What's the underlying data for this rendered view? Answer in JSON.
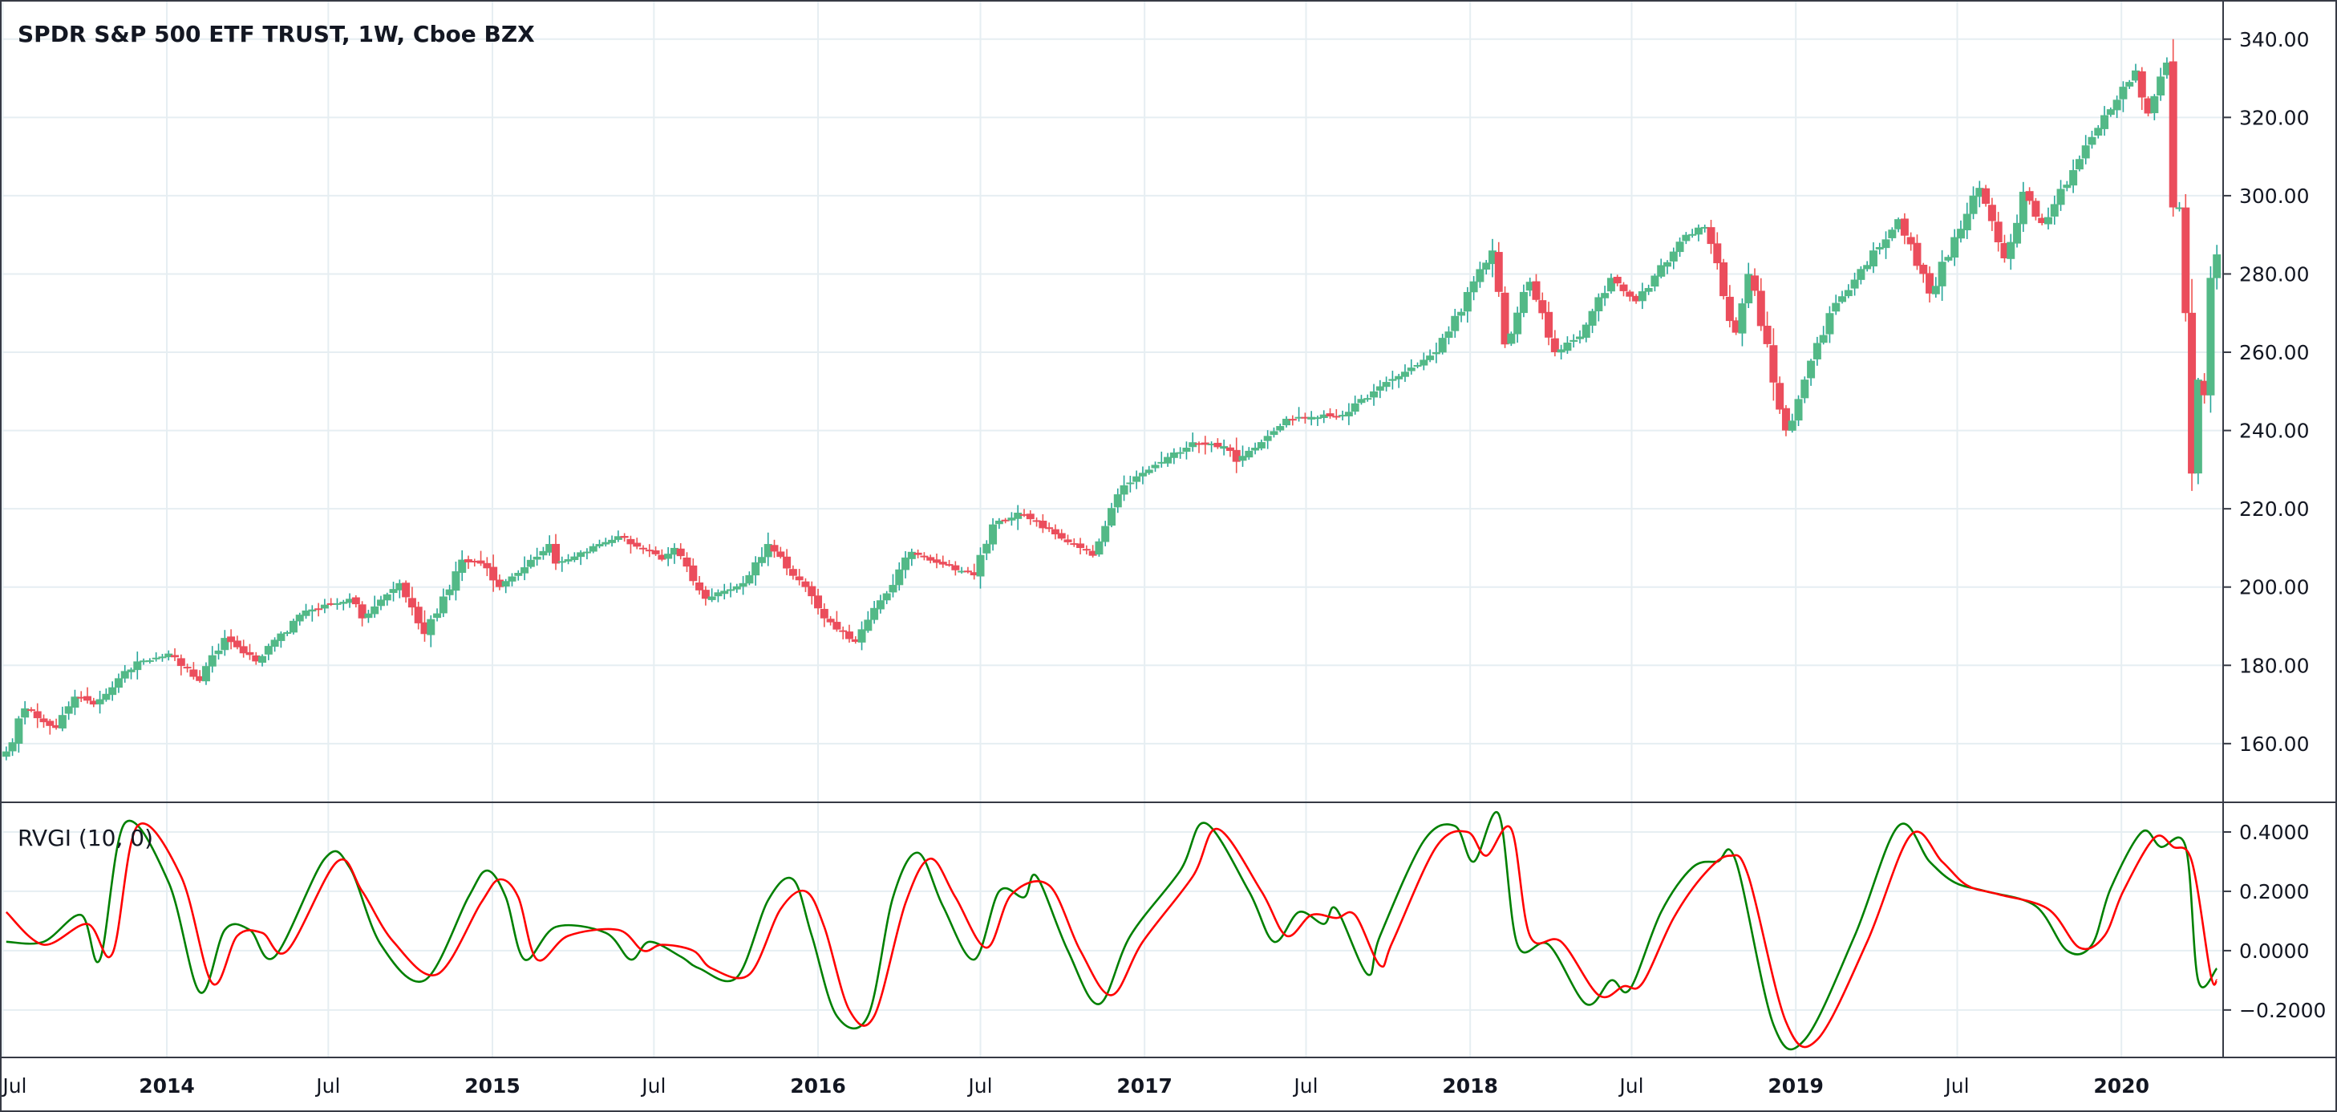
{
  "chart_data": [
    {
      "type": "candlestick",
      "title": "SPDR S&P 500 ETF TRUST, 1W, Cboe BZX",
      "ylim": [
        145,
        350
      ],
      "yticks": [
        160,
        180,
        200,
        220,
        240,
        260,
        280,
        300,
        320,
        340
      ],
      "ytick_labels": [
        "160.00",
        "180.00",
        "200.00",
        "220.00",
        "240.00",
        "260.00",
        "280.00",
        "300.00",
        "320.00",
        "340.00"
      ],
      "grid": true,
      "colors": {
        "up": "#26a69a",
        "up_fill": "#53b987",
        "down": "#ef5350",
        "down_fill": "#eb4d5c",
        "grid": "#e6eef2"
      },
      "close_anchors": [
        [
          "2013-07-05",
          158
        ],
        [
          "2013-07-26",
          169
        ],
        [
          "2013-08-30",
          164
        ],
        [
          "2013-09-20",
          172
        ],
        [
          "2013-10-11",
          170
        ],
        [
          "2013-11-29",
          181
        ],
        [
          "2014-01-03",
          183
        ],
        [
          "2014-02-07",
          176
        ],
        [
          "2014-03-07",
          187
        ],
        [
          "2014-04-11",
          181
        ],
        [
          "2014-06-06",
          194
        ],
        [
          "2014-07-25",
          197
        ],
        [
          "2014-08-08",
          192
        ],
        [
          "2014-09-19",
          201
        ],
        [
          "2014-10-17",
          188
        ],
        [
          "2014-11-28",
          207
        ],
        [
          "2014-12-19",
          206
        ],
        [
          "2015-01-09",
          200
        ],
        [
          "2015-03-06",
          211
        ],
        [
          "2015-03-13",
          206
        ],
        [
          "2015-05-22",
          213
        ],
        [
          "2015-07-10",
          207
        ],
        [
          "2015-07-24",
          210
        ],
        [
          "2015-08-28",
          197
        ],
        [
          "2015-10-09",
          201
        ],
        [
          "2015-11-06",
          211
        ],
        [
          "2015-12-18",
          200
        ],
        [
          "2016-01-08",
          192
        ],
        [
          "2016-02-12",
          186
        ],
        [
          "2016-04-15",
          209
        ],
        [
          "2016-06-24",
          203
        ],
        [
          "2016-07-15",
          216
        ],
        [
          "2016-08-12",
          219
        ],
        [
          "2016-11-04",
          208
        ],
        [
          "2016-12-09",
          226
        ],
        [
          "2017-02-24",
          237
        ],
        [
          "2017-03-31",
          236
        ],
        [
          "2017-04-14",
          232
        ],
        [
          "2017-06-09",
          243
        ],
        [
          "2017-08-11",
          244
        ],
        [
          "2017-09-15",
          250
        ],
        [
          "2017-11-24",
          260
        ],
        [
          "2018-01-26",
          286
        ],
        [
          "2018-02-09",
          262
        ],
        [
          "2018-03-09",
          278
        ],
        [
          "2018-04-06",
          260
        ],
        [
          "2018-05-04",
          264
        ],
        [
          "2018-06-08",
          279
        ],
        [
          "2018-07-06",
          273
        ],
        [
          "2018-08-31",
          290
        ],
        [
          "2018-09-21",
          292
        ],
        [
          "2018-10-26",
          265
        ],
        [
          "2018-11-09",
          280
        ],
        [
          "2018-12-21",
          240
        ],
        [
          "2019-02-08",
          270
        ],
        [
          "2019-04-26",
          294
        ],
        [
          "2019-05-31",
          275
        ],
        [
          "2019-07-26",
          302
        ],
        [
          "2019-08-23",
          284
        ],
        [
          "2019-09-13",
          301
        ],
        [
          "2019-10-04",
          293
        ],
        [
          "2019-11-29",
          315
        ],
        [
          "2020-01-17",
          332
        ],
        [
          "2020-01-31",
          321
        ],
        [
          "2020-02-21",
          334
        ],
        [
          "2020-02-28",
          297
        ],
        [
          "2020-03-06",
          297
        ],
        [
          "2020-03-13",
          270
        ],
        [
          "2020-03-20",
          229
        ],
        [
          "2020-03-27",
          253
        ],
        [
          "2020-04-03",
          249
        ],
        [
          "2020-04-10",
          279
        ],
        [
          "2020-04-17",
          285
        ]
      ]
    },
    {
      "type": "line",
      "title": "RVGI (10, 0)",
      "ylim": [
        -0.36,
        0.5
      ],
      "yticks": [
        -0.2,
        0,
        0.2,
        0.4
      ],
      "ytick_labels": [
        "−0.2000",
        "0.0000",
        "0.2000",
        "0.4000"
      ],
      "grid": true,
      "series": [
        {
          "role": "rvgi",
          "color": "#008000",
          "points": [
            [
              "2013-07-05",
              0.03
            ],
            [
              "2013-08-16",
              0.03
            ],
            [
              "2013-09-27",
              0.12
            ],
            [
              "2013-10-18",
              -0.03
            ],
            [
              "2013-11-15",
              0.43
            ],
            [
              "2014-01-03",
              0.23
            ],
            [
              "2014-02-07",
              -0.14
            ],
            [
              "2014-03-07",
              0.07
            ],
            [
              "2014-04-04",
              0.07
            ],
            [
              "2014-05-02",
              -0.02
            ],
            [
              "2014-06-27",
              0.31
            ],
            [
              "2014-07-25",
              0.28
            ],
            [
              "2014-08-29",
              0.02
            ],
            [
              "2014-10-17",
              -0.1
            ],
            [
              "2014-12-05",
              0.18
            ],
            [
              "2014-12-26",
              0.27
            ],
            [
              "2015-01-16",
              0.18
            ],
            [
              "2015-02-06",
              -0.03
            ],
            [
              "2015-03-13",
              0.08
            ],
            [
              "2015-05-08",
              0.06
            ],
            [
              "2015-06-05",
              -0.03
            ],
            [
              "2015-06-26",
              0.03
            ],
            [
              "2015-07-31",
              -0.02
            ],
            [
              "2015-08-21",
              -0.06
            ],
            [
              "2015-10-02",
              -0.09
            ],
            [
              "2015-11-06",
              0.17
            ],
            [
              "2015-12-04",
              0.24
            ],
            [
              "2015-12-25",
              0.05
            ],
            [
              "2016-01-22",
              -0.22
            ],
            [
              "2016-02-26",
              -0.22
            ],
            [
              "2016-03-25",
              0.18
            ],
            [
              "2016-04-22",
              0.33
            ],
            [
              "2016-05-20",
              0.15
            ],
            [
              "2016-06-24",
              -0.03
            ],
            [
              "2016-07-22",
              0.2
            ],
            [
              "2016-08-19",
              0.18
            ],
            [
              "2016-09-02",
              0.25
            ],
            [
              "2016-10-07",
              0.0
            ],
            [
              "2016-11-11",
              -0.18
            ],
            [
              "2016-12-16",
              0.05
            ],
            [
              "2017-02-10",
              0.27
            ],
            [
              "2017-03-10",
              0.43
            ],
            [
              "2017-04-28",
              0.2
            ],
            [
              "2017-05-26",
              0.03
            ],
            [
              "2017-06-23",
              0.13
            ],
            [
              "2017-07-21",
              0.09
            ],
            [
              "2017-08-04",
              0.14
            ],
            [
              "2017-09-08",
              -0.08
            ],
            [
              "2017-09-22",
              0.05
            ],
            [
              "2017-11-10",
              0.37
            ],
            [
              "2017-12-15",
              0.42
            ],
            [
              "2018-01-05",
              0.3
            ],
            [
              "2018-02-02",
              0.46
            ],
            [
              "2018-02-23",
              0.02
            ],
            [
              "2018-03-30",
              0.02
            ],
            [
              "2018-05-11",
              -0.18
            ],
            [
              "2018-06-08",
              -0.1
            ],
            [
              "2018-06-29",
              -0.13
            ],
            [
              "2018-08-03",
              0.13
            ],
            [
              "2018-09-07",
              0.28
            ],
            [
              "2018-10-05",
              0.3
            ],
            [
              "2018-10-26",
              0.3
            ],
            [
              "2018-12-07",
              -0.25
            ],
            [
              "2019-01-11",
              -0.3
            ],
            [
              "2019-03-08",
              0.05
            ],
            [
              "2019-04-26",
              0.42
            ],
            [
              "2019-05-31",
              0.3
            ],
            [
              "2019-06-28",
              0.23
            ],
            [
              "2019-08-02",
              0.2
            ],
            [
              "2019-09-27",
              0.15
            ],
            [
              "2019-11-01",
              0.0
            ],
            [
              "2019-11-29",
              0.02
            ],
            [
              "2019-12-20",
              0.21
            ],
            [
              "2020-01-24",
              0.4
            ],
            [
              "2020-02-14",
              0.35
            ],
            [
              "2020-03-13",
              0.35
            ],
            [
              "2020-03-27",
              -0.1
            ],
            [
              "2020-04-17",
              -0.06
            ]
          ]
        },
        {
          "role": "signal",
          "color": "#ff0000",
          "points": [
            [
              "2013-07-05",
              0.13
            ],
            [
              "2013-08-16",
              0.02
            ],
            [
              "2013-10-04",
              0.09
            ],
            [
              "2013-11-01",
              -0.01
            ],
            [
              "2013-11-29",
              0.42
            ],
            [
              "2014-01-17",
              0.25
            ],
            [
              "2014-02-21",
              -0.11
            ],
            [
              "2014-03-21",
              0.05
            ],
            [
              "2014-04-18",
              0.06
            ],
            [
              "2014-05-16",
              0.0
            ],
            [
              "2014-07-11",
              0.3
            ],
            [
              "2014-08-08",
              0.2
            ],
            [
              "2014-09-12",
              0.03
            ],
            [
              "2014-10-31",
              -0.08
            ],
            [
              "2014-12-19",
              0.16
            ],
            [
              "2015-01-09",
              0.24
            ],
            [
              "2015-01-30",
              0.18
            ],
            [
              "2015-02-20",
              -0.03
            ],
            [
              "2015-03-27",
              0.05
            ],
            [
              "2015-05-22",
              0.07
            ],
            [
              "2015-06-19",
              0.0
            ],
            [
              "2015-07-10",
              0.02
            ],
            [
              "2015-08-14",
              0.0
            ],
            [
              "2015-09-04",
              -0.06
            ],
            [
              "2015-10-16",
              -0.08
            ],
            [
              "2015-11-20",
              0.14
            ],
            [
              "2015-12-18",
              0.2
            ],
            [
              "2016-01-08",
              0.08
            ],
            [
              "2016-02-05",
              -0.2
            ],
            [
              "2016-03-04",
              -0.22
            ],
            [
              "2016-04-08",
              0.16
            ],
            [
              "2016-05-06",
              0.31
            ],
            [
              "2016-06-03",
              0.18
            ],
            [
              "2016-07-08",
              0.01
            ],
            [
              "2016-08-05",
              0.19
            ],
            [
              "2016-09-16",
              0.22
            ],
            [
              "2016-10-21",
              0.0
            ],
            [
              "2016-11-25",
              -0.15
            ],
            [
              "2016-12-30",
              0.03
            ],
            [
              "2017-02-24",
              0.25
            ],
            [
              "2017-03-24",
              0.41
            ],
            [
              "2017-05-12",
              0.2
            ],
            [
              "2017-06-09",
              0.05
            ],
            [
              "2017-07-07",
              0.12
            ],
            [
              "2017-08-04",
              0.11
            ],
            [
              "2017-08-25",
              0.12
            ],
            [
              "2017-09-22",
              -0.05
            ],
            [
              "2017-10-06",
              0.03
            ],
            [
              "2017-11-24",
              0.35
            ],
            [
              "2017-12-29",
              0.4
            ],
            [
              "2018-01-19",
              0.32
            ],
            [
              "2018-02-16",
              0.41
            ],
            [
              "2018-03-09",
              0.05
            ],
            [
              "2018-04-13",
              0.03
            ],
            [
              "2018-05-25",
              -0.15
            ],
            [
              "2018-06-22",
              -0.12
            ],
            [
              "2018-07-13",
              -0.11
            ],
            [
              "2018-08-17",
              0.11
            ],
            [
              "2018-09-21",
              0.26
            ],
            [
              "2018-10-19",
              0.32
            ],
            [
              "2018-11-09",
              0.25
            ],
            [
              "2018-12-21",
              -0.24
            ],
            [
              "2019-01-25",
              -0.3
            ],
            [
              "2019-03-22",
              0.03
            ],
            [
              "2019-05-10",
              0.39
            ],
            [
              "2019-06-14",
              0.3
            ],
            [
              "2019-07-12",
              0.22
            ],
            [
              "2019-08-16",
              0.19
            ],
            [
              "2019-10-11",
              0.14
            ],
            [
              "2019-11-15",
              0.01
            ],
            [
              "2019-12-13",
              0.05
            ],
            [
              "2020-01-03",
              0.2
            ],
            [
              "2020-02-07",
              0.38
            ],
            [
              "2020-02-28",
              0.35
            ],
            [
              "2020-03-20",
              0.3
            ],
            [
              "2020-04-10",
              -0.08
            ],
            [
              "2020-04-17",
              -0.1
            ]
          ]
        }
      ]
    }
  ],
  "x_axis": {
    "ticks": [
      {
        "date": "2013-07-01",
        "label": "Jul",
        "bold": false
      },
      {
        "date": "2014-01-01",
        "label": "2014",
        "bold": true
      },
      {
        "date": "2014-07-01",
        "label": "Jul",
        "bold": false
      },
      {
        "date": "2015-01-01",
        "label": "2015",
        "bold": true
      },
      {
        "date": "2015-07-01",
        "label": "Jul",
        "bold": false
      },
      {
        "date": "2016-01-01",
        "label": "2016",
        "bold": true
      },
      {
        "date": "2016-07-01",
        "label": "Jul",
        "bold": false
      },
      {
        "date": "2017-01-01",
        "label": "2017",
        "bold": true
      },
      {
        "date": "2017-07-01",
        "label": "Jul",
        "bold": false
      },
      {
        "date": "2018-01-01",
        "label": "2018",
        "bold": true
      },
      {
        "date": "2018-07-01",
        "label": "Jul",
        "bold": false
      },
      {
        "date": "2019-01-01",
        "label": "2019",
        "bold": true
      },
      {
        "date": "2019-07-01",
        "label": "Jul",
        "bold": false
      },
      {
        "date": "2020-01-01",
        "label": "2020",
        "bold": true
      }
    ]
  }
}
